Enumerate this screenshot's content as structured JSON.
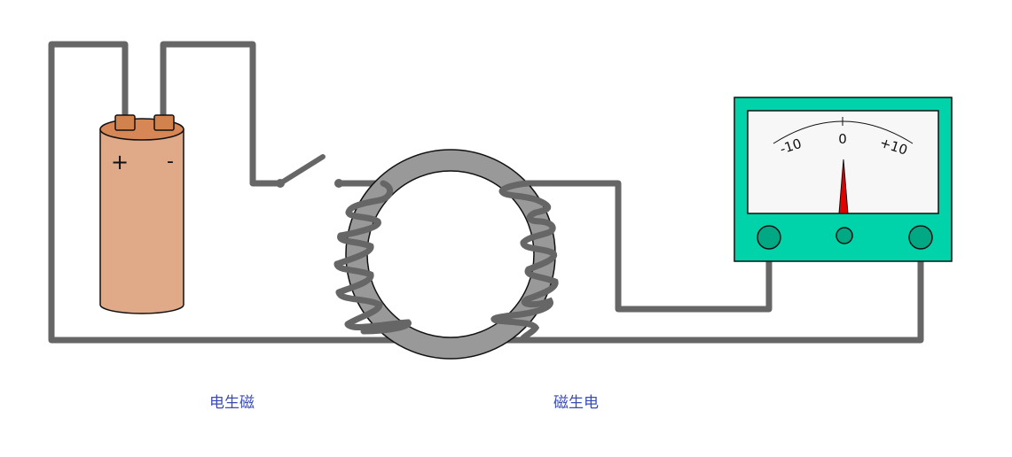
{
  "colors": {
    "wire": "#666666",
    "battery_body": "#e0a987",
    "battery_top": "#d78756",
    "battery_terminal": "#d2824d",
    "ring": "#999999",
    "meter_case": "#00d3a9",
    "meter_face": "#f7f7f7",
    "needle": "#e00000",
    "caption": "#3b4bb8"
  },
  "battery": {
    "plus_label": "+",
    "minus_label": "-"
  },
  "meter": {
    "scale_labels": {
      "min": "-10",
      "zero": "0",
      "max": "+10"
    },
    "needle_reading": 0
  },
  "captions": {
    "left": "电生磁",
    "right": "磁生电"
  }
}
